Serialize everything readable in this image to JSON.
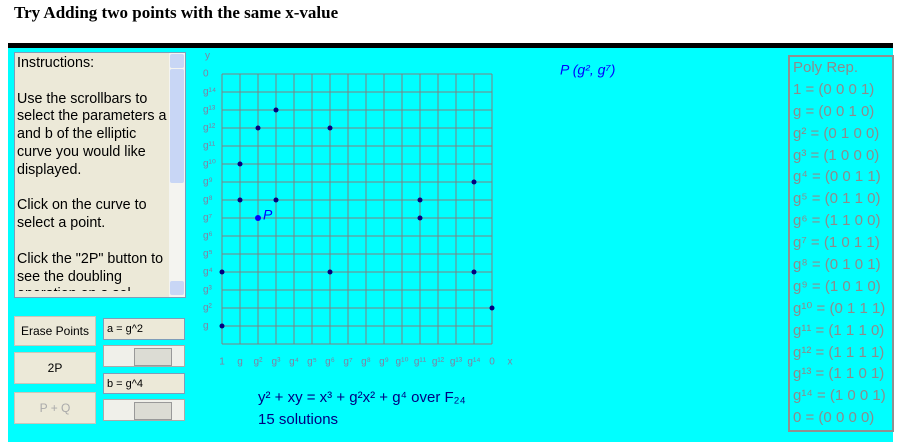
{
  "title": "Try Adding two points with the same x-value",
  "instructions": [
    "Instructions:",
    "Use the scrollbars to select the parameters a and b of the elliptic curve you would like displayed.",
    "Click on the curve to select a point.",
    "Click the \"2P\" button to see the doubling operation on a sel"
  ],
  "controls": {
    "erase": "Erase Points",
    "double": "2P",
    "add": "P + Q",
    "a_field": "a = g^2",
    "b_field": "b = g^4"
  },
  "plot": {
    "type": "scatter",
    "x_label": "x",
    "y_label": "y",
    "xlim": [
      0,
      15
    ],
    "ylim": [
      0,
      15
    ],
    "xticks": [
      {
        "value": 0,
        "label": "1"
      },
      {
        "value": 1,
        "label": "g"
      },
      {
        "value": 2,
        "label": "g²"
      },
      {
        "value": 3,
        "label": "g³"
      },
      {
        "value": 4,
        "label": "g⁴"
      },
      {
        "value": 5,
        "label": "g⁵"
      },
      {
        "value": 6,
        "label": "g⁶"
      },
      {
        "value": 7,
        "label": "g⁷"
      },
      {
        "value": 8,
        "label": "g⁸"
      },
      {
        "value": 9,
        "label": "g⁹"
      },
      {
        "value": 10,
        "label": "g¹⁰"
      },
      {
        "value": 11,
        "label": "g¹¹"
      },
      {
        "value": 12,
        "label": "g¹²"
      },
      {
        "value": 13,
        "label": "g¹³"
      },
      {
        "value": 14,
        "label": "g¹⁴"
      },
      {
        "value": 15,
        "label": "0"
      }
    ],
    "yticks": [
      {
        "value": 1,
        "label": "g"
      },
      {
        "value": 2,
        "label": "g²"
      },
      {
        "value": 3,
        "label": "g³"
      },
      {
        "value": 4,
        "label": "g⁴"
      },
      {
        "value": 5,
        "label": "g⁵"
      },
      {
        "value": 6,
        "label": "g⁶"
      },
      {
        "value": 7,
        "label": "g⁷"
      },
      {
        "value": 8,
        "label": "g⁸"
      },
      {
        "value": 9,
        "label": "g⁹"
      },
      {
        "value": 10,
        "label": "g¹⁰"
      },
      {
        "value": 11,
        "label": "g¹¹"
      },
      {
        "value": 12,
        "label": "g¹²"
      },
      {
        "value": 13,
        "label": "g¹³"
      },
      {
        "value": 14,
        "label": "g¹⁴"
      },
      {
        "value": 15,
        "label": "0"
      }
    ],
    "grid": true,
    "color": "#000080",
    "selected_color": "#0000ff",
    "points": [
      {
        "x": 0,
        "y": 1
      },
      {
        "x": 0,
        "y": 4
      },
      {
        "x": 1,
        "y": 10
      },
      {
        "x": 1,
        "y": 8
      },
      {
        "x": 2,
        "y": 12
      },
      {
        "x": 2,
        "y": 7
      },
      {
        "x": 3,
        "y": 13
      },
      {
        "x": 3,
        "y": 8
      },
      {
        "x": 6,
        "y": 12
      },
      {
        "x": 6,
        "y": 4
      },
      {
        "x": 11,
        "y": 8
      },
      {
        "x": 11,
        "y": 7
      },
      {
        "x": 14,
        "y": 9
      },
      {
        "x": 14,
        "y": 4
      },
      {
        "x": 15,
        "y": 2
      }
    ],
    "selected": 5,
    "point_label": "P",
    "point_caption": "P (g², g⁷)"
  },
  "equation": "y² + xy = x³ + g²x² + g⁴ over F₂₄",
  "solutions": "15 solutions",
  "poly_rep": {
    "title": "Poly Rep.",
    "rows": [
      "1 = (0 0 0 1)",
      "g = (0 0 1 0)",
      "g² = (0 1 0 0)",
      "g³ = (1 0 0 0)",
      "g⁴ = (0 0 1 1)",
      "g⁵ = (0 1 1 0)",
      "g⁶ = (1 1 0 0)",
      "g⁷ = (1 0 1 1)",
      "g⁸ = (0 1 0 1)",
      "g⁹ = (1 0 1 0)",
      "g¹⁰ = (0 1 1 1)",
      "g¹¹ = (1 1 1 0)",
      "g¹² = (1 1 1 1)",
      "g¹³ = (1 1 0 1)",
      "g¹⁴ = (1 0 0 1)",
      "0 = (0 0 0 0)"
    ]
  }
}
